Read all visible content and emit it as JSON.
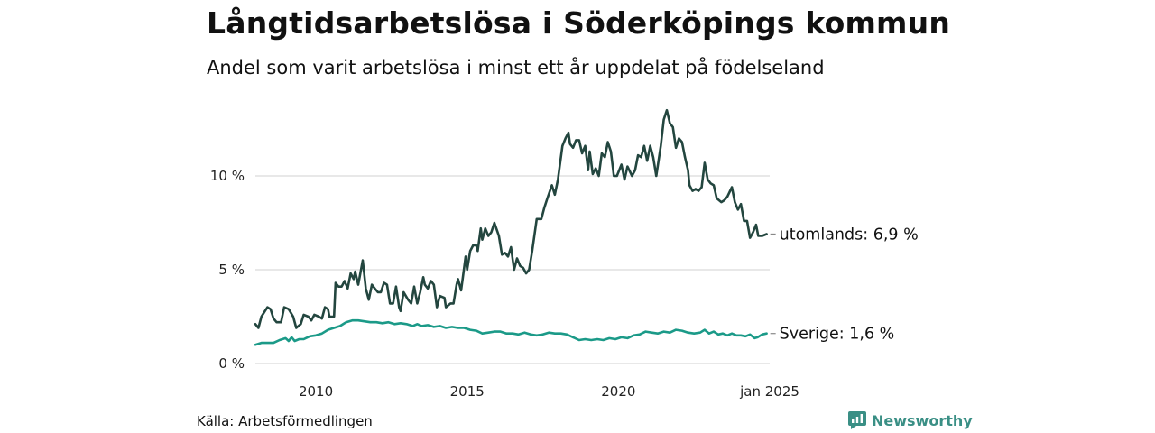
{
  "header": {
    "title": "Långtidsarbetslösa i Söderköpings kommun",
    "subtitle": "Andel som varit arbetslösa i minst ett år uppdelat på födelseland"
  },
  "footer": {
    "source": "Källa: Arbetsförmedlingen",
    "brand": "Newsworthy"
  },
  "colors": {
    "utomlands": "#23463f",
    "sverige": "#1b9a88",
    "grid": "#d9d9d9",
    "brand": "#3a8f85"
  },
  "chart_data": {
    "type": "line",
    "title": "Långtidsarbetslösa i Söderköpings kommun",
    "subtitle": "Andel som varit arbetslösa i minst ett år uppdelat på födelseland",
    "xlabel": "",
    "ylabel": "",
    "x_range": [
      2008.0,
      2025.0
    ],
    "ylim": [
      0,
      13.7
    ],
    "x_ticks": [
      {
        "value": 2010,
        "label": "2010"
      },
      {
        "value": 2015,
        "label": "2015"
      },
      {
        "value": 2020,
        "label": "2020"
      },
      {
        "value": 2025,
        "label": "jan 2025"
      }
    ],
    "y_ticks": [
      {
        "value": 0,
        "label": "0 %"
      },
      {
        "value": 5,
        "label": "5 %"
      },
      {
        "value": 10,
        "label": "10 %"
      }
    ],
    "grid": true,
    "series": [
      {
        "name": "utomlands",
        "end_label": "utomlands: 6,9 %",
        "points": [
          [
            2008.0,
            2.1
          ],
          [
            2008.1,
            1.9
          ],
          [
            2008.2,
            2.5
          ],
          [
            2008.4,
            3.0
          ],
          [
            2008.5,
            2.9
          ],
          [
            2008.6,
            2.4
          ],
          [
            2008.7,
            2.2
          ],
          [
            2008.85,
            2.2
          ],
          [
            2008.95,
            3.0
          ],
          [
            2009.1,
            2.9
          ],
          [
            2009.25,
            2.5
          ],
          [
            2009.35,
            1.9
          ],
          [
            2009.5,
            2.1
          ],
          [
            2009.6,
            2.6
          ],
          [
            2009.75,
            2.5
          ],
          [
            2009.85,
            2.3
          ],
          [
            2009.95,
            2.6
          ],
          [
            2010.1,
            2.5
          ],
          [
            2010.2,
            2.4
          ],
          [
            2010.3,
            3.0
          ],
          [
            2010.4,
            2.9
          ],
          [
            2010.45,
            2.5
          ],
          [
            2010.6,
            2.5
          ],
          [
            2010.65,
            4.3
          ],
          [
            2010.75,
            4.1
          ],
          [
            2010.85,
            4.1
          ],
          [
            2010.95,
            4.4
          ],
          [
            2011.05,
            4.0
          ],
          [
            2011.15,
            4.8
          ],
          [
            2011.25,
            4.5
          ],
          [
            2011.3,
            4.9
          ],
          [
            2011.4,
            4.2
          ],
          [
            2011.55,
            5.5
          ],
          [
            2011.65,
            4.0
          ],
          [
            2011.75,
            3.4
          ],
          [
            2011.85,
            4.2
          ],
          [
            2011.95,
            4.0
          ],
          [
            2012.05,
            3.8
          ],
          [
            2012.15,
            3.8
          ],
          [
            2012.25,
            4.3
          ],
          [
            2012.35,
            4.2
          ],
          [
            2012.45,
            3.2
          ],
          [
            2012.55,
            3.2
          ],
          [
            2012.65,
            4.1
          ],
          [
            2012.75,
            3.0
          ],
          [
            2012.8,
            2.8
          ],
          [
            2012.9,
            3.8
          ],
          [
            2013.05,
            3.4
          ],
          [
            2013.15,
            3.2
          ],
          [
            2013.25,
            4.1
          ],
          [
            2013.35,
            3.2
          ],
          [
            2013.45,
            3.8
          ],
          [
            2013.55,
            4.6
          ],
          [
            2013.6,
            4.2
          ],
          [
            2013.7,
            4.0
          ],
          [
            2013.8,
            4.4
          ],
          [
            2013.9,
            4.2
          ],
          [
            2014.0,
            3.0
          ],
          [
            2014.1,
            3.6
          ],
          [
            2014.25,
            3.5
          ],
          [
            2014.3,
            3.0
          ],
          [
            2014.45,
            3.2
          ],
          [
            2014.55,
            3.2
          ],
          [
            2014.65,
            4.2
          ],
          [
            2014.7,
            4.5
          ],
          [
            2014.8,
            3.9
          ],
          [
            2014.85,
            4.5
          ],
          [
            2014.95,
            5.7
          ],
          [
            2015.0,
            5.0
          ],
          [
            2015.1,
            6.0
          ],
          [
            2015.2,
            6.3
          ],
          [
            2015.3,
            6.3
          ],
          [
            2015.35,
            6.0
          ],
          [
            2015.45,
            7.2
          ],
          [
            2015.5,
            6.6
          ],
          [
            2015.6,
            7.2
          ],
          [
            2015.7,
            6.8
          ],
          [
            2015.8,
            7.0
          ],
          [
            2015.9,
            7.5
          ],
          [
            2016.05,
            6.8
          ],
          [
            2016.15,
            5.8
          ],
          [
            2016.25,
            5.9
          ],
          [
            2016.35,
            5.7
          ],
          [
            2016.45,
            6.2
          ],
          [
            2016.55,
            5.0
          ],
          [
            2016.65,
            5.6
          ],
          [
            2016.75,
            5.2
          ],
          [
            2016.85,
            5.1
          ],
          [
            2016.95,
            4.8
          ],
          [
            2017.05,
            5.0
          ],
          [
            2017.15,
            6.0
          ],
          [
            2017.3,
            7.7
          ],
          [
            2017.45,
            7.7
          ],
          [
            2017.55,
            8.3
          ],
          [
            2017.65,
            8.8
          ],
          [
            2017.8,
            9.5
          ],
          [
            2017.9,
            9.0
          ],
          [
            2018.0,
            9.8
          ],
          [
            2018.15,
            11.6
          ],
          [
            2018.25,
            12.0
          ],
          [
            2018.35,
            12.3
          ],
          [
            2018.4,
            11.7
          ],
          [
            2018.5,
            11.5
          ],
          [
            2018.6,
            11.9
          ],
          [
            2018.7,
            11.9
          ],
          [
            2018.8,
            11.2
          ],
          [
            2018.9,
            11.6
          ],
          [
            2019.0,
            10.3
          ],
          [
            2019.05,
            11.3
          ],
          [
            2019.15,
            10.1
          ],
          [
            2019.25,
            10.4
          ],
          [
            2019.35,
            10.0
          ],
          [
            2019.45,
            11.2
          ],
          [
            2019.55,
            11.0
          ],
          [
            2019.65,
            11.8
          ],
          [
            2019.75,
            11.3
          ],
          [
            2019.85,
            10.0
          ],
          [
            2019.95,
            10.0
          ],
          [
            2020.1,
            10.6
          ],
          [
            2020.2,
            9.8
          ],
          [
            2020.3,
            10.5
          ],
          [
            2020.45,
            10.0
          ],
          [
            2020.55,
            10.3
          ],
          [
            2020.65,
            11.1
          ],
          [
            2020.75,
            11.0
          ],
          [
            2020.85,
            11.6
          ],
          [
            2020.95,
            10.8
          ],
          [
            2021.05,
            11.6
          ],
          [
            2021.15,
            11.0
          ],
          [
            2021.25,
            10.0
          ],
          [
            2021.4,
            11.6
          ],
          [
            2021.5,
            13.0
          ],
          [
            2021.6,
            13.5
          ],
          [
            2021.7,
            12.8
          ],
          [
            2021.8,
            12.6
          ],
          [
            2021.9,
            11.5
          ],
          [
            2022.0,
            12.0
          ],
          [
            2022.1,
            11.8
          ],
          [
            2022.2,
            11.0
          ],
          [
            2022.3,
            10.3
          ],
          [
            2022.35,
            9.5
          ],
          [
            2022.45,
            9.2
          ],
          [
            2022.55,
            9.3
          ],
          [
            2022.65,
            9.2
          ],
          [
            2022.75,
            9.4
          ],
          [
            2022.85,
            10.7
          ],
          [
            2022.95,
            9.8
          ],
          [
            2023.05,
            9.6
          ],
          [
            2023.15,
            9.5
          ],
          [
            2023.25,
            8.8
          ],
          [
            2023.4,
            8.6
          ],
          [
            2023.5,
            8.7
          ],
          [
            2023.6,
            8.9
          ],
          [
            2023.75,
            9.4
          ],
          [
            2023.85,
            8.6
          ],
          [
            2023.95,
            8.2
          ],
          [
            2024.05,
            8.5
          ],
          [
            2024.15,
            7.6
          ],
          [
            2024.25,
            7.6
          ],
          [
            2024.35,
            6.7
          ],
          [
            2024.45,
            7.0
          ],
          [
            2024.55,
            7.4
          ],
          [
            2024.62,
            6.8
          ],
          [
            2024.75,
            6.8
          ],
          [
            2024.9,
            6.9
          ]
        ]
      },
      {
        "name": "Sverige",
        "end_label": "Sverige: 1,6 %",
        "points": [
          [
            2008.0,
            1.0
          ],
          [
            2008.2,
            1.1
          ],
          [
            2008.4,
            1.1
          ],
          [
            2008.6,
            1.1
          ],
          [
            2008.8,
            1.25
          ],
          [
            2009.0,
            1.35
          ],
          [
            2009.1,
            1.2
          ],
          [
            2009.2,
            1.4
          ],
          [
            2009.3,
            1.2
          ],
          [
            2009.45,
            1.3
          ],
          [
            2009.6,
            1.3
          ],
          [
            2009.8,
            1.45
          ],
          [
            2010.0,
            1.5
          ],
          [
            2010.2,
            1.6
          ],
          [
            2010.4,
            1.8
          ],
          [
            2010.6,
            1.9
          ],
          [
            2010.8,
            2.0
          ],
          [
            2011.0,
            2.2
          ],
          [
            2011.2,
            2.3
          ],
          [
            2011.4,
            2.3
          ],
          [
            2011.6,
            2.25
          ],
          [
            2011.8,
            2.2
          ],
          [
            2012.0,
            2.2
          ],
          [
            2012.2,
            2.15
          ],
          [
            2012.4,
            2.2
          ],
          [
            2012.6,
            2.1
          ],
          [
            2012.8,
            2.15
          ],
          [
            2013.0,
            2.1
          ],
          [
            2013.2,
            2.0
          ],
          [
            2013.35,
            2.1
          ],
          [
            2013.5,
            2.0
          ],
          [
            2013.7,
            2.05
          ],
          [
            2013.9,
            1.95
          ],
          [
            2014.1,
            2.0
          ],
          [
            2014.3,
            1.9
          ],
          [
            2014.5,
            1.95
          ],
          [
            2014.7,
            1.9
          ],
          [
            2014.9,
            1.9
          ],
          [
            2015.1,
            1.8
          ],
          [
            2015.3,
            1.75
          ],
          [
            2015.5,
            1.6
          ],
          [
            2015.7,
            1.65
          ],
          [
            2015.9,
            1.7
          ],
          [
            2016.1,
            1.7
          ],
          [
            2016.3,
            1.6
          ],
          [
            2016.5,
            1.6
          ],
          [
            2016.7,
            1.55
          ],
          [
            2016.9,
            1.65
          ],
          [
            2017.1,
            1.55
          ],
          [
            2017.3,
            1.5
          ],
          [
            2017.5,
            1.55
          ],
          [
            2017.7,
            1.65
          ],
          [
            2017.9,
            1.6
          ],
          [
            2018.1,
            1.6
          ],
          [
            2018.3,
            1.55
          ],
          [
            2018.5,
            1.4
          ],
          [
            2018.7,
            1.25
          ],
          [
            2018.9,
            1.3
          ],
          [
            2019.1,
            1.25
          ],
          [
            2019.3,
            1.3
          ],
          [
            2019.5,
            1.25
          ],
          [
            2019.7,
            1.35
          ],
          [
            2019.9,
            1.3
          ],
          [
            2020.1,
            1.4
          ],
          [
            2020.3,
            1.35
          ],
          [
            2020.5,
            1.5
          ],
          [
            2020.7,
            1.55
          ],
          [
            2020.9,
            1.7
          ],
          [
            2021.1,
            1.65
          ],
          [
            2021.3,
            1.6
          ],
          [
            2021.5,
            1.7
          ],
          [
            2021.7,
            1.65
          ],
          [
            2021.9,
            1.8
          ],
          [
            2022.1,
            1.75
          ],
          [
            2022.3,
            1.65
          ],
          [
            2022.5,
            1.6
          ],
          [
            2022.7,
            1.65
          ],
          [
            2022.85,
            1.8
          ],
          [
            2023.0,
            1.6
          ],
          [
            2023.15,
            1.7
          ],
          [
            2023.3,
            1.55
          ],
          [
            2023.45,
            1.6
          ],
          [
            2023.6,
            1.5
          ],
          [
            2023.75,
            1.6
          ],
          [
            2023.9,
            1.5
          ],
          [
            2024.05,
            1.5
          ],
          [
            2024.2,
            1.45
          ],
          [
            2024.35,
            1.55
          ],
          [
            2024.5,
            1.35
          ],
          [
            2024.6,
            1.4
          ],
          [
            2024.75,
            1.55
          ],
          [
            2024.9,
            1.6
          ]
        ]
      }
    ]
  }
}
